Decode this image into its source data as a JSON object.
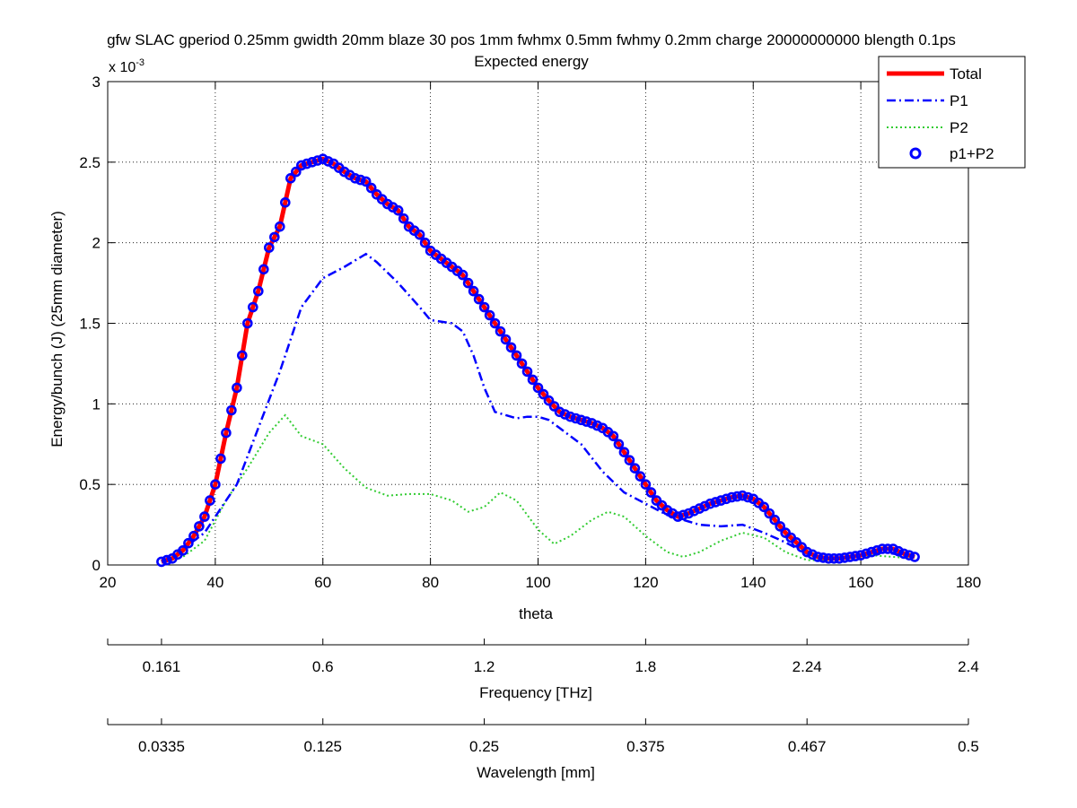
{
  "chart_data": {
    "type": "line",
    "title": "gfw SLAC gperiod 0.25mm gwidth 20mm blaze 30 pos 1mm fwhmx 0.5mm fwhmy 0.2mm charge 20000000000 blength 0.1ps",
    "subtitle": "Expected energy",
    "xlabel": "theta",
    "ylabel": "Energy/bunch (J) (25mm diameter)",
    "y_multiplier": "x 10",
    "y_exponent": "-3",
    "xlim": [
      20,
      180
    ],
    "ylim": [
      0,
      0.003
    ],
    "grid": true,
    "legend_position": "top-right",
    "x_ticks": [
      "20",
      "40",
      "60",
      "80",
      "100",
      "120",
      "140",
      "160",
      "180"
    ],
    "y_ticks": [
      "0",
      "0.5",
      "1",
      "1.5",
      "2",
      "2.5",
      "3"
    ],
    "secondary_axes": [
      {
        "label": "Frequency [THz]",
        "tick_theta": [
          20,
          30,
          60,
          90,
          120,
          150,
          180
        ],
        "tick_labels": [
          "",
          "0.161",
          "0.6",
          "1.2",
          "1.8",
          "2.24",
          "2.4"
        ]
      },
      {
        "label": "Wavelength [mm]",
        "tick_theta": [
          20,
          30,
          60,
          90,
          120,
          150,
          180
        ],
        "tick_labels": [
          "",
          "0.0335",
          "0.125",
          "0.25",
          "0.375",
          "0.467",
          "0.5"
        ]
      }
    ],
    "series": [
      {
        "name": "Total",
        "style": "solid",
        "color": "#ff0000",
        "points": [
          [
            30,
            2e-05
          ],
          [
            32,
            4e-05
          ],
          [
            34,
            9e-05
          ],
          [
            36,
            0.00018
          ],
          [
            38,
            0.0003
          ],
          [
            40,
            0.0005
          ],
          [
            42,
            0.00082
          ],
          [
            44,
            0.0011
          ],
          [
            46,
            0.0015
          ],
          [
            48,
            0.0017
          ],
          [
            50,
            0.00197
          ],
          [
            52,
            0.0021
          ],
          [
            54,
            0.0024
          ],
          [
            56,
            0.00248
          ],
          [
            58,
            0.0025
          ],
          [
            60,
            0.00252
          ],
          [
            62,
            0.00249
          ],
          [
            64,
            0.00244
          ],
          [
            66,
            0.0024
          ],
          [
            68,
            0.00238
          ],
          [
            70,
            0.0023
          ],
          [
            72,
            0.00224
          ],
          [
            74,
            0.0022
          ],
          [
            76,
            0.0021
          ],
          [
            78,
            0.00205
          ],
          [
            80,
            0.00195
          ],
          [
            82,
            0.0019
          ],
          [
            84,
            0.00185
          ],
          [
            86,
            0.0018
          ],
          [
            88,
            0.0017
          ],
          [
            90,
            0.0016
          ],
          [
            92,
            0.0015
          ],
          [
            94,
            0.0014
          ],
          [
            96,
            0.0013
          ],
          [
            98,
            0.0012
          ],
          [
            100,
            0.0011
          ],
          [
            102,
            0.00102
          ],
          [
            104,
            0.00095
          ],
          [
            106,
            0.00092
          ],
          [
            108,
            0.0009
          ],
          [
            110,
            0.00088
          ],
          [
            112,
            0.00085
          ],
          [
            114,
            0.0008
          ],
          [
            116,
            0.0007
          ],
          [
            118,
            0.0006
          ],
          [
            120,
            0.0005
          ],
          [
            122,
            0.0004
          ],
          [
            124,
            0.00034
          ],
          [
            126,
            0.0003
          ],
          [
            128,
            0.00032
          ],
          [
            130,
            0.00035
          ],
          [
            132,
            0.00038
          ],
          [
            134,
            0.0004
          ],
          [
            136,
            0.00042
          ],
          [
            138,
            0.00043
          ],
          [
            140,
            0.00041
          ],
          [
            142,
            0.00036
          ],
          [
            144,
            0.00028
          ],
          [
            146,
            0.0002
          ],
          [
            148,
            0.00014
          ],
          [
            150,
            8e-05
          ],
          [
            152,
            5e-05
          ],
          [
            154,
            4e-05
          ],
          [
            156,
            4e-05
          ],
          [
            158,
            5e-05
          ],
          [
            160,
            6e-05
          ],
          [
            162,
            8e-05
          ],
          [
            164,
            0.0001
          ],
          [
            166,
            0.0001
          ],
          [
            168,
            7e-05
          ],
          [
            170,
            5e-05
          ]
        ]
      },
      {
        "name": "P1",
        "style": "dashdot",
        "color": "#0000ff",
        "points": [
          [
            30,
            2e-05
          ],
          [
            34,
            0.0001
          ],
          [
            38,
            0.0002
          ],
          [
            42,
            0.0004
          ],
          [
            44,
            0.0005
          ],
          [
            48,
            0.00085
          ],
          [
            52,
            0.0012
          ],
          [
            54,
            0.0014
          ],
          [
            56,
            0.0016
          ],
          [
            60,
            0.00178
          ],
          [
            64,
            0.00185
          ],
          [
            68,
            0.00193
          ],
          [
            70,
            0.00188
          ],
          [
            74,
            0.00175
          ],
          [
            78,
            0.0016
          ],
          [
            80,
            0.00152
          ],
          [
            84,
            0.0015
          ],
          [
            86,
            0.00145
          ],
          [
            88,
            0.0013
          ],
          [
            90,
            0.0011
          ],
          [
            92,
            0.00095
          ],
          [
            96,
            0.00091
          ],
          [
            98,
            0.00092
          ],
          [
            100,
            0.00092
          ],
          [
            102,
            0.0009
          ],
          [
            104,
            0.00085
          ],
          [
            108,
            0.00075
          ],
          [
            112,
            0.00058
          ],
          [
            116,
            0.00045
          ],
          [
            120,
            0.00038
          ],
          [
            124,
            0.00031
          ],
          [
            128,
            0.00027
          ],
          [
            130,
            0.00025
          ],
          [
            134,
            0.00024
          ],
          [
            138,
            0.00025
          ],
          [
            142,
            0.0002
          ],
          [
            146,
            0.00014
          ],
          [
            150,
            7e-05
          ],
          [
            154,
            4e-05
          ],
          [
            158,
            5e-05
          ],
          [
            162,
            7e-05
          ],
          [
            164,
            8e-05
          ],
          [
            166,
            7e-05
          ],
          [
            170,
            5e-05
          ]
        ]
      },
      {
        "name": "P2",
        "style": "dotted",
        "color": "#33cc33",
        "points": [
          [
            30,
            2e-05
          ],
          [
            34,
            5e-05
          ],
          [
            38,
            0.00015
          ],
          [
            42,
            0.0004
          ],
          [
            46,
            0.0006
          ],
          [
            50,
            0.00082
          ],
          [
            53,
            0.00093
          ],
          [
            56,
            0.0008
          ],
          [
            60,
            0.00075
          ],
          [
            64,
            0.0006
          ],
          [
            68,
            0.00048
          ],
          [
            72,
            0.00043
          ],
          [
            76,
            0.00044
          ],
          [
            80,
            0.00044
          ],
          [
            84,
            0.0004
          ],
          [
            87,
            0.00033
          ],
          [
            90,
            0.00036
          ],
          [
            93,
            0.00045
          ],
          [
            96,
            0.0004
          ],
          [
            100,
            0.00022
          ],
          [
            103,
            0.00013
          ],
          [
            106,
            0.00018
          ],
          [
            110,
            0.00028
          ],
          [
            113,
            0.00033
          ],
          [
            116,
            0.0003
          ],
          [
            120,
            0.00018
          ],
          [
            124,
            8e-05
          ],
          [
            127,
            5e-05
          ],
          [
            130,
            8e-05
          ],
          [
            134,
            0.00015
          ],
          [
            138,
            0.0002
          ],
          [
            142,
            0.00017
          ],
          [
            146,
            8e-05
          ],
          [
            150,
            3e-05
          ],
          [
            154,
            3e-05
          ],
          [
            158,
            5e-05
          ],
          [
            162,
            6e-05
          ],
          [
            166,
            5e-05
          ],
          [
            170,
            4e-05
          ]
        ]
      },
      {
        "name": "p1+P2",
        "style": "circle-markers",
        "color": "#0000ff",
        "points": []
      }
    ]
  }
}
